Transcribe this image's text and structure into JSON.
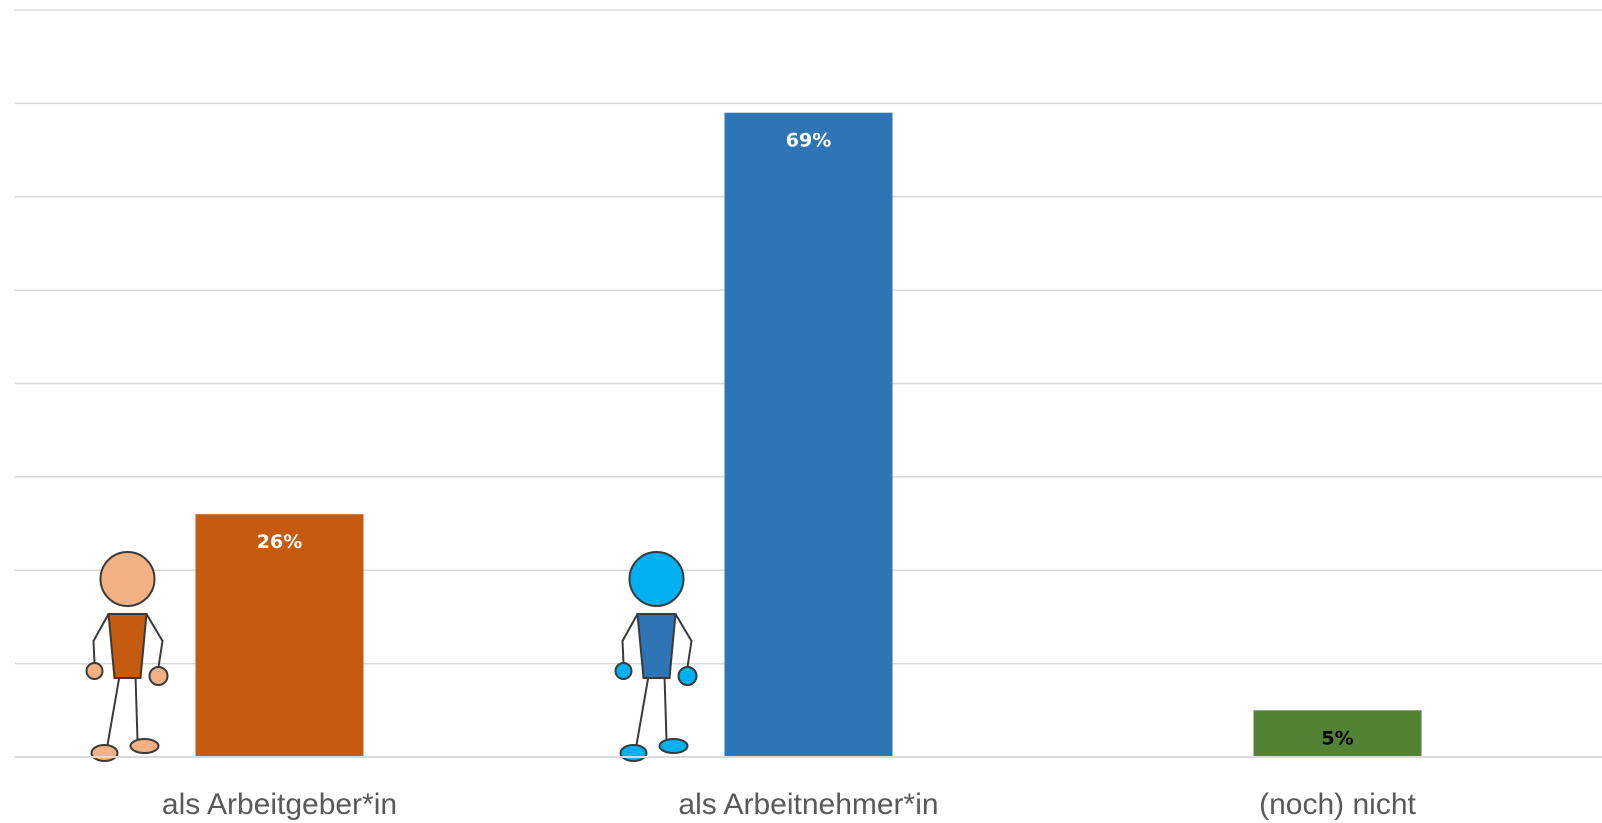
{
  "chart_data": {
    "type": "bar",
    "title": "",
    "xlabel": "",
    "ylabel": "",
    "categories": [
      "als Arbeitgeber*in",
      "als Arbeitnehmer*in",
      "(noch) nicht"
    ],
    "values": [
      26,
      69,
      5
    ],
    "value_labels": [
      "26%",
      "69%",
      "5%"
    ],
    "unit": "%",
    "ylim": [
      0,
      80
    ],
    "grid": true,
    "legend": "none",
    "colors": [
      "#C55A11",
      "#2E75B6",
      "#548235"
    ],
    "value_label_colors": [
      "#ffffff",
      "#ffffff",
      "#000000"
    ],
    "icons": [
      {
        "name": "person-orange-icon",
        "skin": "#F4B183",
        "shirt": "#C55A11"
      },
      {
        "name": "person-blue-icon",
        "skin": "#00B0F0",
        "shirt": "#2E75B6"
      }
    ]
  }
}
